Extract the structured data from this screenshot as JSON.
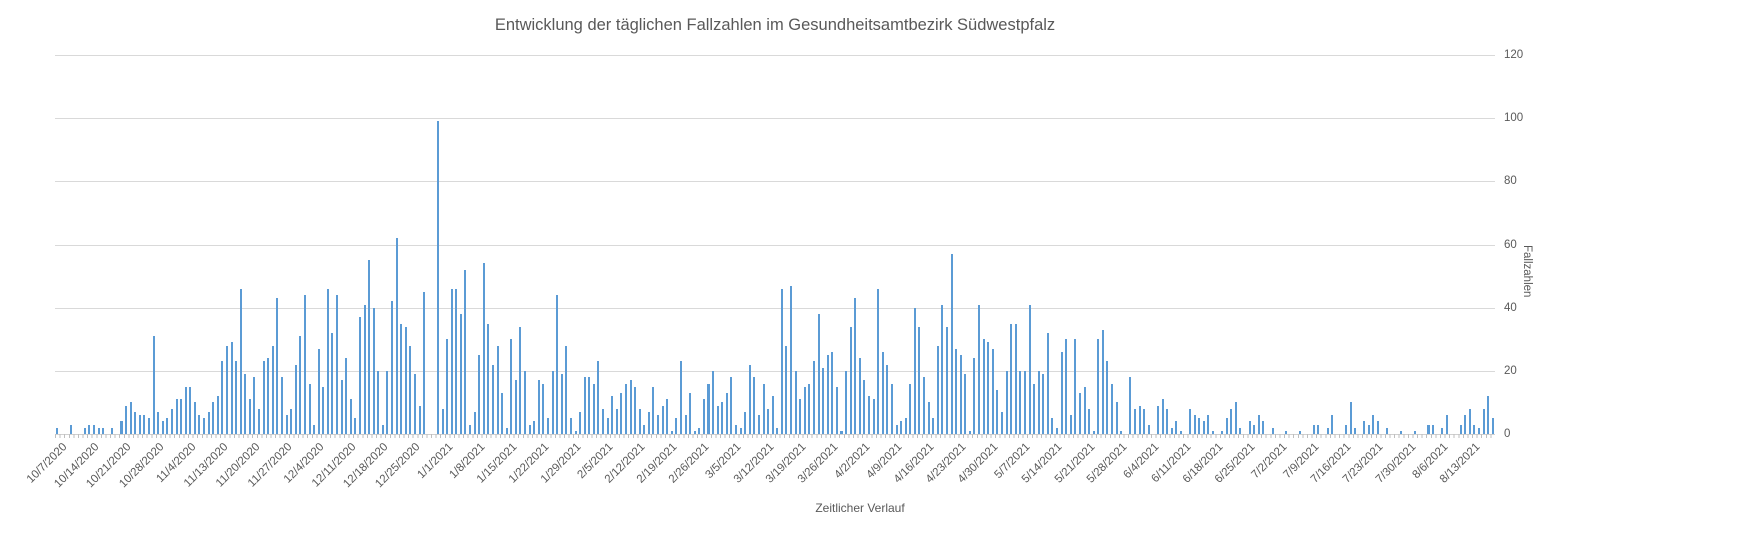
{
  "chart_data": {
    "type": "bar",
    "title": "Entwicklung der täglichen Fallzahlen im Gesundheitsamtbezirk Südwestpfalz",
    "xlabel": "Zeitlicher Verlauf",
    "ylabel": "Fallzahlen",
    "ylim": [
      0,
      120
    ],
    "y_ticks": [
      0,
      20,
      40,
      60,
      80,
      100,
      120
    ],
    "grid": true,
    "legend": false,
    "y_axis_side": "right",
    "bar_color": "#5b9bd5",
    "gridline_color": "#d9d9d9",
    "text_color": "#595959",
    "tick_label_every": 7,
    "x_tick_labels": [
      "10/7/2020",
      "10/14/2020",
      "10/21/2020",
      "10/28/2020",
      "11/4/2020",
      "11/13/2020",
      "11/20/2020",
      "11/27/2020",
      "12/4/2020",
      "12/11/2020",
      "12/18/2020",
      "12/25/2020",
      "1/1/2021",
      "1/8/2021",
      "1/15/2021",
      "1/22/2021",
      "1/29/2021",
      "2/5/2021",
      "2/12/2021",
      "2/19/2021",
      "2/26/2021",
      "3/5/2021",
      "3/12/2021",
      "3/19/2021",
      "3/26/2021",
      "4/2/2021",
      "4/9/2021",
      "4/16/2021",
      "4/23/2021",
      "4/30/2021",
      "5/7/2021",
      "5/14/2021",
      "5/21/2021",
      "5/28/2021",
      "6/4/2021",
      "6/11/2021",
      "6/18/2021",
      "6/25/2021",
      "7/2/2021",
      "7/9/2021",
      "7/16/2021",
      "7/23/2021",
      "7/30/2021",
      "8/6/2021",
      "8/13/2021"
    ],
    "values": [
      2,
      0,
      0,
      3,
      0,
      0,
      2,
      3,
      3,
      2,
      2,
      0,
      2,
      0,
      4,
      9,
      10,
      7,
      6,
      6,
      5,
      31,
      7,
      4,
      5,
      8,
      11,
      11,
      15,
      15,
      10,
      6,
      5,
      7,
      10,
      12,
      23,
      28,
      29,
      23,
      46,
      19,
      11,
      18,
      8,
      23,
      24,
      28,
      43,
      18,
      6,
      8,
      22,
      31,
      44,
      16,
      3,
      27,
      15,
      46,
      32,
      44,
      17,
      24,
      11,
      5,
      37,
      41,
      55,
      40,
      20,
      3,
      20,
      42,
      62,
      35,
      34,
      28,
      19,
      9,
      45,
      0,
      0,
      99,
      8,
      30,
      46,
      46,
      38,
      52,
      3,
      7,
      25,
      54,
      35,
      22,
      28,
      13,
      2,
      30,
      17,
      34,
      20,
      3,
      4,
      17,
      16,
      5,
      20,
      44,
      19,
      28,
      5,
      1,
      7,
      18,
      18,
      16,
      23,
      8,
      5,
      12,
      8,
      13,
      16,
      17,
      15,
      8,
      3,
      7,
      15,
      6,
      9,
      11,
      1,
      5,
      23,
      6,
      13,
      1,
      2,
      11,
      16,
      20,
      9,
      10,
      13,
      18,
      3,
      2,
      7,
      22,
      18,
      6,
      16,
      8,
      12,
      2,
      46,
      28,
      47,
      20,
      11,
      15,
      16,
      23,
      38,
      21,
      25,
      26,
      15,
      1,
      20,
      34,
      43,
      24,
      17,
      12,
      11,
      46,
      26,
      22,
      16,
      3,
      4,
      5,
      16,
      40,
      34,
      18,
      10,
      5,
      28,
      41,
      34,
      57,
      27,
      25,
      19,
      1,
      24,
      41,
      30,
      29,
      27,
      14,
      7,
      20,
      35,
      35,
      20,
      20,
      41,
      16,
      20,
      19,
      32,
      5,
      2,
      26,
      30,
      6,
      30,
      13,
      15,
      8,
      1,
      30,
      33,
      23,
      16,
      10,
      1,
      0,
      18,
      8,
      9,
      8,
      3,
      0,
      9,
      11,
      8,
      2,
      4,
      1,
      0,
      8,
      6,
      5,
      4,
      6,
      1,
      0,
      1,
      5,
      8,
      10,
      2,
      0,
      4,
      3,
      6,
      4,
      0,
      2,
      0,
      0,
      1,
      0,
      0,
      1,
      0,
      0,
      3,
      3,
      0,
      2,
      6,
      0,
      0,
      3,
      10,
      2,
      0,
      4,
      3,
      6,
      4,
      0,
      2,
      0,
      0,
      1,
      0,
      0,
      1,
      0,
      0,
      3,
      3,
      0,
      2,
      6,
      0,
      0,
      3,
      6,
      8,
      3,
      2,
      8,
      12,
      5
    ]
  }
}
